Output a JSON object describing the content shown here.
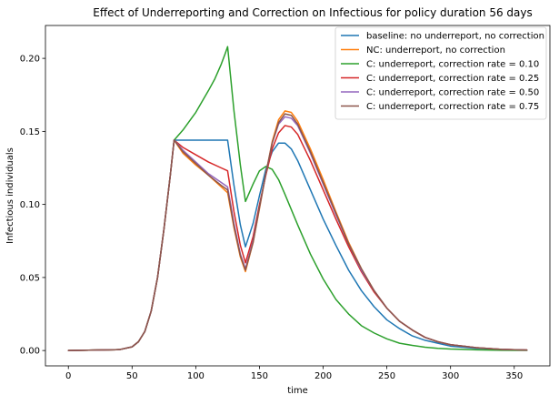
{
  "chart_data": {
    "type": "line",
    "title": "Effect of Underreporting and Correction on Infectious for policy duration 56 days",
    "xlabel": "time",
    "ylabel": "Infectious individuals",
    "xlim": [
      -18,
      378
    ],
    "ylim": [
      -0.0105,
      0.2225
    ],
    "xticks": [
      0,
      50,
      100,
      150,
      200,
      250,
      300,
      350
    ],
    "xtick_labels": [
      "0",
      "50",
      "100",
      "150",
      "200",
      "250",
      "300",
      "350"
    ],
    "yticks": [
      0.0,
      0.05,
      0.1,
      0.15,
      0.2
    ],
    "ytick_labels": [
      "0.00",
      "0.05",
      "0.10",
      "0.15",
      "0.20"
    ],
    "grid": false,
    "legend_position": "top-right",
    "series": [
      {
        "name": "baseline: no underreport, no correction",
        "color": "#1f77b4",
        "x": [
          0,
          40,
          50,
          55,
          60,
          65,
          70,
          75,
          80,
          83,
          90,
          100,
          110,
          120,
          125,
          130,
          135,
          139,
          145,
          150,
          155,
          160,
          165,
          170,
          175,
          180,
          190,
          200,
          210,
          220,
          230,
          240,
          250,
          260,
          270,
          280,
          290,
          300,
          320,
          340,
          360
        ],
        "y": [
          0.0,
          0.0006,
          0.0025,
          0.006,
          0.013,
          0.027,
          0.05,
          0.083,
          0.12,
          0.144,
          0.144,
          0.144,
          0.144,
          0.144,
          0.144,
          0.113,
          0.086,
          0.071,
          0.087,
          0.106,
          0.124,
          0.136,
          0.142,
          0.142,
          0.138,
          0.13,
          0.11,
          0.09,
          0.072,
          0.055,
          0.041,
          0.03,
          0.021,
          0.015,
          0.01,
          0.007,
          0.005,
          0.003,
          0.0015,
          0.0007,
          0.0003
        ]
      },
      {
        "name": "NC: underreport, no correction",
        "color": "#ff7f0e",
        "x": [
          0,
          40,
          50,
          55,
          60,
          65,
          70,
          75,
          80,
          83,
          90,
          100,
          110,
          120,
          125,
          130,
          135,
          139,
          145,
          150,
          155,
          160,
          165,
          170,
          175,
          180,
          190,
          200,
          210,
          220,
          230,
          240,
          250,
          260,
          270,
          280,
          290,
          300,
          320,
          340,
          360
        ],
        "y": [
          0.0,
          0.0006,
          0.0025,
          0.006,
          0.013,
          0.027,
          0.05,
          0.083,
          0.12,
          0.144,
          0.135,
          0.127,
          0.12,
          0.112,
          0.108,
          0.084,
          0.064,
          0.054,
          0.074,
          0.097,
          0.121,
          0.143,
          0.158,
          0.164,
          0.163,
          0.157,
          0.138,
          0.117,
          0.095,
          0.074,
          0.056,
          0.041,
          0.029,
          0.02,
          0.014,
          0.009,
          0.006,
          0.004,
          0.002,
          0.0008,
          0.0003
        ]
      },
      {
        "name": "C: underreport, correction rate = 0.10",
        "color": "#2ca02c",
        "x": [
          0,
          40,
          50,
          55,
          60,
          65,
          70,
          75,
          80,
          83,
          90,
          100,
          110,
          115,
          120,
          123,
          125,
          130,
          135,
          139,
          145,
          150,
          155,
          160,
          165,
          170,
          180,
          190,
          200,
          210,
          220,
          230,
          240,
          250,
          260,
          270,
          280,
          290,
          300,
          320,
          340,
          360
        ],
        "y": [
          0.0,
          0.0006,
          0.0025,
          0.006,
          0.013,
          0.027,
          0.05,
          0.083,
          0.12,
          0.144,
          0.151,
          0.163,
          0.178,
          0.186,
          0.196,
          0.203,
          0.208,
          0.164,
          0.127,
          0.102,
          0.114,
          0.123,
          0.126,
          0.124,
          0.117,
          0.107,
          0.086,
          0.066,
          0.049,
          0.035,
          0.025,
          0.017,
          0.012,
          0.008,
          0.005,
          0.0035,
          0.0023,
          0.0015,
          0.001,
          0.0005,
          0.0002,
          0.0001
        ]
      },
      {
        "name": "C: underreport, correction rate = 0.25",
        "color": "#d62728",
        "x": [
          0,
          40,
          50,
          55,
          60,
          65,
          70,
          75,
          80,
          83,
          90,
          100,
          110,
          120,
          125,
          130,
          135,
          139,
          145,
          150,
          155,
          160,
          165,
          170,
          175,
          180,
          190,
          200,
          210,
          220,
          230,
          240,
          250,
          260,
          270,
          280,
          290,
          300,
          320,
          340,
          360
        ],
        "y": [
          0.0,
          0.0006,
          0.0025,
          0.006,
          0.013,
          0.027,
          0.05,
          0.083,
          0.12,
          0.144,
          0.139,
          0.134,
          0.129,
          0.125,
          0.123,
          0.095,
          0.072,
          0.06,
          0.078,
          0.1,
          0.12,
          0.138,
          0.149,
          0.154,
          0.153,
          0.148,
          0.13,
          0.11,
          0.09,
          0.071,
          0.054,
          0.04,
          0.029,
          0.02,
          0.014,
          0.009,
          0.006,
          0.004,
          0.002,
          0.0008,
          0.0003
        ]
      },
      {
        "name": "C: underreport, correction rate = 0.50",
        "color": "#9467bd",
        "x": [
          0,
          40,
          50,
          55,
          60,
          65,
          70,
          75,
          80,
          83,
          90,
          100,
          110,
          120,
          125,
          130,
          135,
          139,
          145,
          150,
          155,
          160,
          165,
          170,
          175,
          180,
          190,
          200,
          210,
          220,
          230,
          240,
          250,
          260,
          270,
          280,
          290,
          300,
          320,
          340,
          360
        ],
        "y": [
          0.0,
          0.0006,
          0.0025,
          0.006,
          0.013,
          0.027,
          0.05,
          0.083,
          0.12,
          0.144,
          0.137,
          0.129,
          0.121,
          0.115,
          0.112,
          0.087,
          0.066,
          0.056,
          0.075,
          0.098,
          0.121,
          0.142,
          0.155,
          0.16,
          0.159,
          0.154,
          0.135,
          0.114,
          0.093,
          0.073,
          0.055,
          0.041,
          0.029,
          0.02,
          0.014,
          0.009,
          0.006,
          0.004,
          0.002,
          0.0008,
          0.0003
        ]
      },
      {
        "name": "C: underreport, correction rate = 0.75",
        "color": "#8c564b",
        "x": [
          0,
          40,
          50,
          55,
          60,
          65,
          70,
          75,
          80,
          83,
          90,
          100,
          110,
          120,
          125,
          130,
          135,
          139,
          145,
          150,
          155,
          160,
          165,
          170,
          175,
          180,
          190,
          200,
          210,
          220,
          230,
          240,
          250,
          260,
          270,
          280,
          290,
          300,
          320,
          340,
          360
        ],
        "y": [
          0.0,
          0.0006,
          0.0025,
          0.006,
          0.013,
          0.027,
          0.05,
          0.083,
          0.12,
          0.144,
          0.136,
          0.128,
          0.12,
          0.113,
          0.11,
          0.085,
          0.065,
          0.055,
          0.074,
          0.098,
          0.121,
          0.142,
          0.156,
          0.162,
          0.161,
          0.155,
          0.136,
          0.115,
          0.094,
          0.073,
          0.056,
          0.041,
          0.029,
          0.02,
          0.014,
          0.009,
          0.006,
          0.004,
          0.002,
          0.0008,
          0.0003
        ]
      }
    ]
  }
}
